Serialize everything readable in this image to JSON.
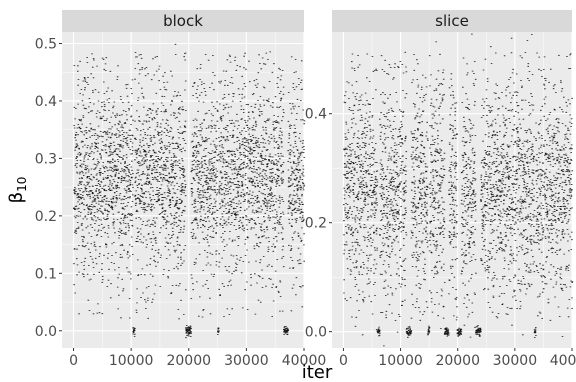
{
  "chart_data": {
    "type": "scatter",
    "xlabel": "iter",
    "ylabel": "β",
    "ylabel_sub": "10",
    "panel_bg": "#ebebeb",
    "strip_bg": "#d9d9d9",
    "grid_color": "#ffffff",
    "point_color": "#000000",
    "panels": [
      {
        "strip": "block",
        "xlim": [
          -2000,
          40000
        ],
        "ylim": [
          -0.03,
          0.52
        ],
        "xticks": [
          0,
          10000,
          20000,
          30000,
          40000
        ],
        "xtick_labels": [
          "0",
          "10000",
          "20000",
          "30000",
          "40000"
        ],
        "yticks": [
          0.0,
          0.1,
          0.2,
          0.3,
          0.4,
          0.5
        ],
        "ytick_labels": [
          "0.0",
          "0.1",
          "0.2",
          "0.3",
          "0.4",
          "0.5"
        ],
        "bulk_range": [
          0.15,
          0.38
        ],
        "zero_level": 0.0,
        "x_range": [
          0,
          40000
        ]
      },
      {
        "strip": "slice",
        "xlim": [
          -2000,
          40000
        ],
        "ylim": [
          -0.03,
          0.55
        ],
        "xticks": [
          0,
          10000,
          20000,
          30000,
          40000
        ],
        "xtick_labels": [
          "0",
          "10000",
          "20000",
          "30000",
          "40000"
        ],
        "yticks": [
          0.0,
          0.2,
          0.4
        ],
        "ytick_labels": [
          "0.0",
          "0.2",
          "0.4"
        ],
        "bulk_range": [
          0.12,
          0.4
        ],
        "zero_level": 0.0,
        "x_range": [
          0,
          40000
        ]
      }
    ]
  }
}
